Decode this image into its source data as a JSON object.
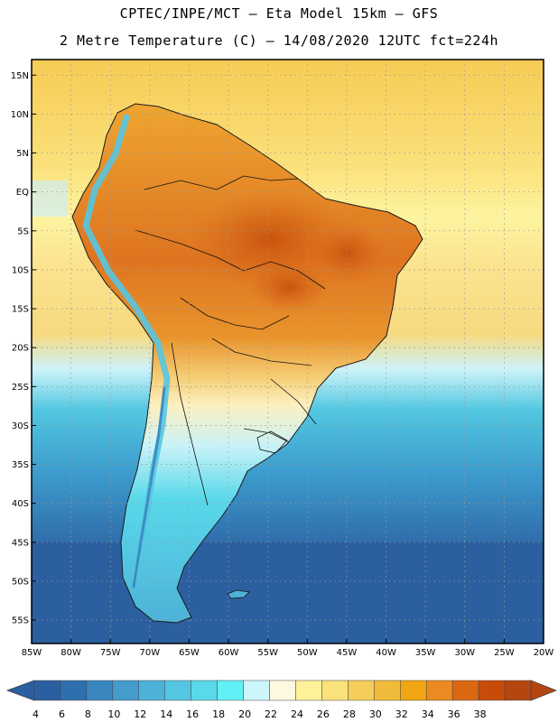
{
  "header": {
    "line1": "CPTEC/INPE/MCT –  Eta Model 15km – GFS",
    "line2": "2 Metre Temperature (C) – 14/08/2020 12UTC fct=224h"
  },
  "map": {
    "lon_range": [
      -85,
      -20
    ],
    "lat_range": [
      -58,
      17
    ],
    "lat_ticks": [
      {
        "label": "15N",
        "lat": 15
      },
      {
        "label": "10N",
        "lat": 10
      },
      {
        "label": "5N",
        "lat": 5
      },
      {
        "label": "EQ",
        "lat": 0
      },
      {
        "label": "5S",
        "lat": -5
      },
      {
        "label": "10S",
        "lat": -10
      },
      {
        "label": "15S",
        "lat": -15
      },
      {
        "label": "20S",
        "lat": -20
      },
      {
        "label": "25S",
        "lat": -25
      },
      {
        "label": "30S",
        "lat": -30
      },
      {
        "label": "35S",
        "lat": -35
      },
      {
        "label": "40S",
        "lat": -40
      },
      {
        "label": "45S",
        "lat": -45
      },
      {
        "label": "50S",
        "lat": -50
      },
      {
        "label": "55S",
        "lat": -55
      }
    ],
    "lon_ticks": [
      {
        "label": "85W",
        "lon": -85
      },
      {
        "label": "80W",
        "lon": -80
      },
      {
        "label": "75W",
        "lon": -75
      },
      {
        "label": "70W",
        "lon": -70
      },
      {
        "label": "65W",
        "lon": -65
      },
      {
        "label": "60W",
        "lon": -60
      },
      {
        "label": "55W",
        "lon": -55
      },
      {
        "label": "50W",
        "lon": -50
      },
      {
        "label": "45W",
        "lon": -45
      },
      {
        "label": "40W",
        "lon": -40
      },
      {
        "label": "35W",
        "lon": -35
      },
      {
        "label": "30W",
        "lon": -30
      },
      {
        "label": "25W",
        "lon": -25
      },
      {
        "label": "20W",
        "lon": -20
      }
    ],
    "colors": {
      "ocean_north": "#f6cc55",
      "ocean_south": "#2a5f9e",
      "land_hot": "#d96a1a",
      "land_warm": "#eea531",
      "patagonia": "#4fd3e0",
      "gridline": "#9a9a9a"
    }
  },
  "colorbar": {
    "labels": [
      "4",
      "6",
      "8",
      "10",
      "12",
      "14",
      "16",
      "18",
      "20",
      "22",
      "24",
      "26",
      "28",
      "30",
      "32",
      "34",
      "36",
      "38"
    ],
    "colors": [
      "#2b5f9f",
      "#2e70ad",
      "#3a86bf",
      "#449bcc",
      "#4db2d8",
      "#55c6e2",
      "#5ad9ea",
      "#61f0f5",
      "#cdf6fb",
      "#fff8e0",
      "#fdf29a",
      "#fbe17c",
      "#f5cd5a",
      "#f0bb3a",
      "#f2a512",
      "#ea8a20",
      "#dc6712",
      "#c74c0a",
      "#b5460f"
    ]
  }
}
